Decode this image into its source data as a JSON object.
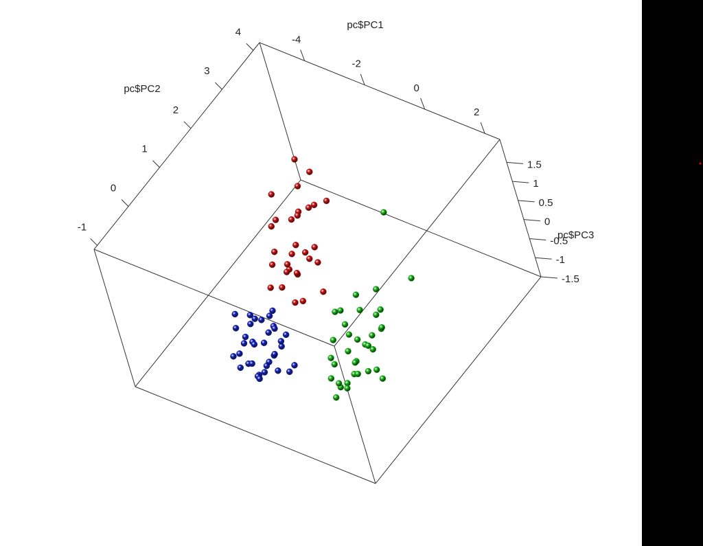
{
  "chart_data": {
    "type": "scatter3d",
    "xlabel": "pc$PC1",
    "ylabel": "pc$PC2",
    "zlabel": "pc$PC3",
    "xlim": [
      -5.5,
      2.5
    ],
    "xticks": [
      -4,
      -2,
      0,
      2
    ],
    "ylim": [
      -1.1,
      4.2
    ],
    "yticks": [
      -1,
      0,
      1,
      2,
      3,
      4
    ],
    "zlim": [
      -1.5,
      2.1
    ],
    "zticks": [
      -1.5,
      -1,
      -0.5,
      0,
      0.5,
      1,
      1.5
    ],
    "series": [
      {
        "color": "#d01010",
        "x": [
          -2.2,
          -1.8,
          -2.6,
          -2.0,
          -1.5,
          -2.9,
          -2.4,
          -1.9,
          -2.1,
          -1.2,
          -3.0,
          -2.5,
          -1.7,
          -2.3,
          -2.8,
          -1.6,
          -2.0,
          -2.7,
          -1.4,
          -2.2,
          -3.2,
          -1.9,
          -2.4,
          -1.1,
          -2.6,
          -2.0,
          -1.8,
          -2.5,
          -3.4,
          -1.6
        ],
        "y": [
          1.6,
          1.2,
          2.3,
          1.9,
          1.0,
          2.6,
          1.4,
          0.8,
          2.1,
          1.3,
          1.8,
          1.1,
          2.0,
          1.5,
          2.8,
          0.9,
          1.7,
          2.2,
          1.5,
          1.2,
          2.0,
          1.0,
          1.8,
          0.7,
          1.3,
          2.5,
          1.6,
          0.9,
          1.9,
          1.4
        ],
        "z": [
          0.5,
          0.8,
          1.2,
          0.2,
          0.6,
          1.5,
          0.0,
          0.3,
          1.0,
          -0.1,
          0.7,
          0.4,
          1.3,
          -0.2,
          1.0,
          0.9,
          0.1,
          0.6,
          0.4,
          0.2,
          1.1,
          -0.3,
          0.9,
          0.3,
          0.5,
          0.8,
          1.4,
          0.0,
          0.3,
          0.7
        ]
      },
      {
        "color": "#18b818",
        "x": [
          0.2,
          0.5,
          -0.1,
          0.8,
          0.3,
          -0.3,
          1.0,
          0.4,
          0.0,
          0.6,
          -0.5,
          0.9,
          0.2,
          0.7,
          -0.2,
          0.1,
          1.2,
          0.5,
          -0.4,
          0.3,
          0.8,
          0.0,
          0.6,
          1.4,
          -0.6,
          0.4,
          0.2,
          0.9,
          -0.1,
          0.5,
          1.1,
          0.3,
          0.7,
          1.8,
          0.2
        ],
        "y": [
          0.6,
          0.4,
          0.9,
          0.3,
          1.1,
          0.5,
          0.7,
          0.2,
          1.3,
          0.8,
          1.0,
          0.5,
          0.0,
          1.2,
          0.4,
          0.8,
          0.6,
          1.5,
          0.7,
          0.1,
          0.9,
          0.3,
          1.4,
          0.4,
          1.2,
          0.6,
          0.9,
          1.1,
          0.2,
          0.5,
          1.0,
          0.3,
          0.8,
          1.6,
          2.4
        ],
        "z": [
          -0.5,
          -0.8,
          -0.2,
          -0.6,
          0.1,
          -0.9,
          -0.3,
          -1.0,
          0.2,
          -0.4,
          -0.1,
          -0.7,
          -1.1,
          0.0,
          -0.6,
          -0.3,
          -0.9,
          0.3,
          -0.5,
          -0.8,
          -0.2,
          -1.2,
          -0.1,
          -0.4,
          -0.3,
          -0.7,
          -0.5,
          -0.2,
          -0.9,
          -0.6,
          0.0,
          -1.0,
          -0.4,
          0.9,
          1.3
        ]
      },
      {
        "color": "#1020c0",
        "x": [
          -2.4,
          -2.1,
          -2.8,
          -2.6,
          -1.9,
          -3.1,
          -2.3,
          -2.0,
          -2.7,
          -1.7,
          -2.5,
          -3.0,
          -2.2,
          -1.8,
          -2.9,
          -2.4,
          -2.0,
          -3.3,
          -2.6,
          -1.6,
          -2.3,
          -2.8,
          -2.1,
          -1.9,
          -2.5,
          -3.2,
          -2.7,
          -1.5,
          -2.2,
          -2.9,
          -2.4,
          -2.0,
          -3.5,
          -2.6,
          -1.8
        ],
        "y": [
          0.3,
          0.1,
          0.5,
          0.0,
          0.4,
          0.6,
          -0.1,
          0.2,
          0.3,
          0.0,
          0.7,
          0.2,
          -0.2,
          0.5,
          0.1,
          0.4,
          -0.3,
          0.3,
          0.6,
          0.2,
          0.0,
          -0.1,
          0.5,
          -0.2,
          0.1,
          0.4,
          0.8,
          0.3,
          0.6,
          -0.2,
          0.2,
          0.4,
          0.5,
          -0.3,
          0.1
        ],
        "z": [
          -0.8,
          -1.0,
          -0.5,
          -1.1,
          -0.7,
          -0.6,
          -1.2,
          -0.9,
          -0.4,
          -1.0,
          -0.8,
          -0.9,
          -1.1,
          -0.6,
          -1.3,
          -0.3,
          -1.0,
          -0.7,
          -0.9,
          -1.2,
          -0.5,
          -0.8,
          -1.0,
          -0.9,
          -0.6,
          -1.0,
          -0.7,
          -1.1,
          -0.2,
          -0.8,
          -1.3,
          -0.4,
          -0.6,
          -0.9,
          -0.7
        ]
      }
    ]
  }
}
